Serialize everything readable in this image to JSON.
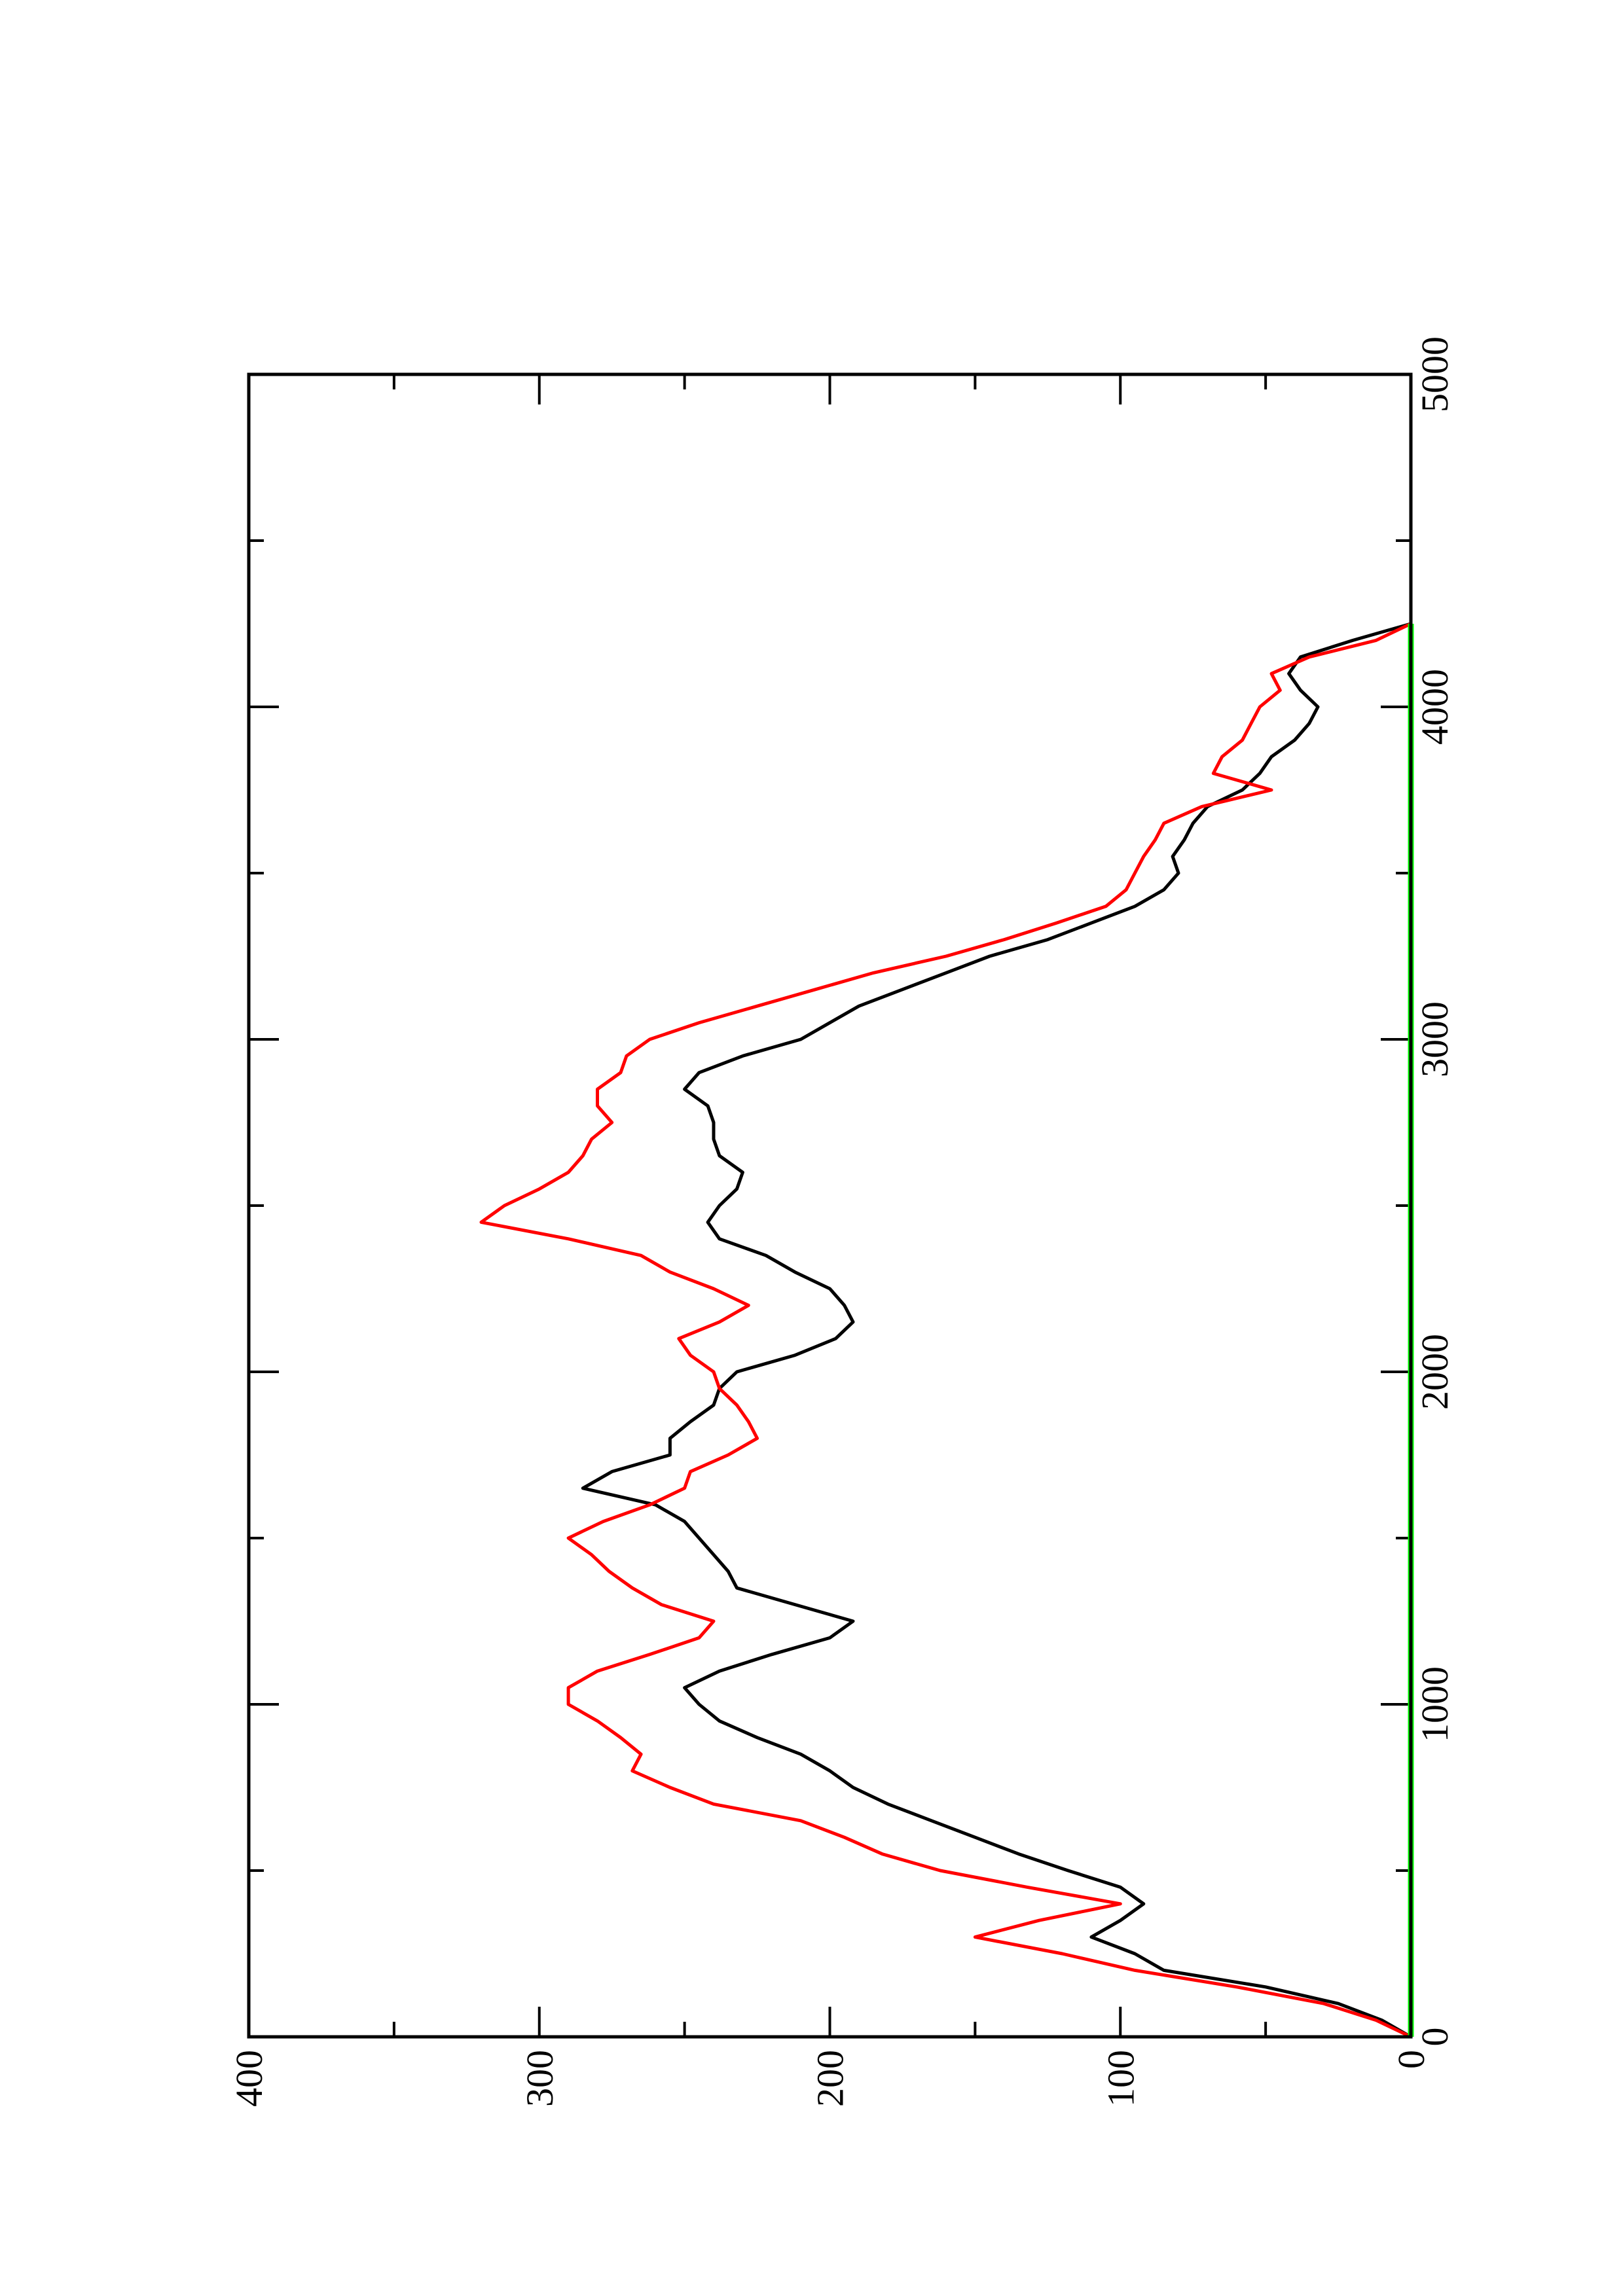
{
  "chart_data": {
    "type": "line",
    "orientation": "rotated-90-ccw",
    "title": "",
    "xlabel": "",
    "ylabel": "",
    "xlim": [
      0,
      5000
    ],
    "ylim": [
      0,
      400
    ],
    "x_ticks": [
      0,
      1000,
      2000,
      3000,
      4000,
      5000
    ],
    "y_ticks": [
      0,
      100,
      200,
      300,
      400
    ],
    "x_tick_labels": [
      "0",
      "1000",
      "2000",
      "3000",
      "4000",
      "5000"
    ],
    "y_tick_labels": [
      "0",
      "100",
      "200",
      "300",
      "400"
    ],
    "grid": false,
    "legend": "none",
    "series": [
      {
        "color": "#000000",
        "points": [
          [
            0,
            0
          ],
          [
            50,
            10
          ],
          [
            100,
            25
          ],
          [
            150,
            50
          ],
          [
            200,
            85
          ],
          [
            250,
            95
          ],
          [
            300,
            110
          ],
          [
            350,
            100
          ],
          [
            400,
            92
          ],
          [
            450,
            100
          ],
          [
            500,
            118
          ],
          [
            550,
            135
          ],
          [
            600,
            150
          ],
          [
            650,
            165
          ],
          [
            700,
            180
          ],
          [
            750,
            192
          ],
          [
            800,
            200
          ],
          [
            850,
            210
          ],
          [
            900,
            225
          ],
          [
            950,
            238
          ],
          [
            1000,
            245
          ],
          [
            1050,
            250
          ],
          [
            1100,
            238
          ],
          [
            1150,
            220
          ],
          [
            1200,
            200
          ],
          [
            1250,
            192
          ],
          [
            1300,
            212
          ],
          [
            1350,
            232
          ],
          [
            1400,
            235
          ],
          [
            1450,
            240
          ],
          [
            1500,
            245
          ],
          [
            1550,
            250
          ],
          [
            1600,
            260
          ],
          [
            1650,
            285
          ],
          [
            1700,
            275
          ],
          [
            1750,
            255
          ],
          [
            1800,
            255
          ],
          [
            1850,
            248
          ],
          [
            1900,
            240
          ],
          [
            1950,
            238
          ],
          [
            2000,
            232
          ],
          [
            2050,
            212
          ],
          [
            2100,
            198
          ],
          [
            2150,
            192
          ],
          [
            2200,
            195
          ],
          [
            2250,
            200
          ],
          [
            2300,
            212
          ],
          [
            2350,
            222
          ],
          [
            2400,
            238
          ],
          [
            2450,
            242
          ],
          [
            2500,
            238
          ],
          [
            2550,
            232
          ],
          [
            2600,
            230
          ],
          [
            2650,
            238
          ],
          [
            2700,
            240
          ],
          [
            2750,
            240
          ],
          [
            2800,
            242
          ],
          [
            2850,
            250
          ],
          [
            2900,
            245
          ],
          [
            2950,
            230
          ],
          [
            3000,
            210
          ],
          [
            3050,
            200
          ],
          [
            3100,
            190
          ],
          [
            3150,
            175
          ],
          [
            3200,
            160
          ],
          [
            3250,
            145
          ],
          [
            3300,
            125
          ],
          [
            3350,
            110
          ],
          [
            3400,
            95
          ],
          [
            3450,
            85
          ],
          [
            3500,
            80
          ],
          [
            3550,
            82
          ],
          [
            3600,
            78
          ],
          [
            3650,
            75
          ],
          [
            3700,
            70
          ],
          [
            3750,
            58
          ],
          [
            3800,
            52
          ],
          [
            3850,
            48
          ],
          [
            3900,
            40
          ],
          [
            3950,
            35
          ],
          [
            4000,
            32
          ],
          [
            4050,
            38
          ],
          [
            4100,
            42
          ],
          [
            4150,
            38
          ],
          [
            4200,
            20
          ],
          [
            4250,
            0
          ]
        ]
      },
      {
        "color": "#ff0000",
        "points": [
          [
            0,
            0
          ],
          [
            50,
            12
          ],
          [
            100,
            30
          ],
          [
            150,
            60
          ],
          [
            200,
            95
          ],
          [
            250,
            120
          ],
          [
            300,
            150
          ],
          [
            350,
            128
          ],
          [
            400,
            100
          ],
          [
            450,
            132
          ],
          [
            500,
            162
          ],
          [
            550,
            182
          ],
          [
            600,
            195
          ],
          [
            650,
            210
          ],
          [
            700,
            240
          ],
          [
            750,
            255
          ],
          [
            800,
            268
          ],
          [
            850,
            265
          ],
          [
            900,
            272
          ],
          [
            950,
            280
          ],
          [
            1000,
            290
          ],
          [
            1050,
            290
          ],
          [
            1100,
            280
          ],
          [
            1150,
            262
          ],
          [
            1200,
            245
          ],
          [
            1250,
            240
          ],
          [
            1300,
            258
          ],
          [
            1350,
            268
          ],
          [
            1400,
            276
          ],
          [
            1450,
            282
          ],
          [
            1500,
            290
          ],
          [
            1550,
            278
          ],
          [
            1600,
            262
          ],
          [
            1650,
            250
          ],
          [
            1700,
            248
          ],
          [
            1750,
            235
          ],
          [
            1800,
            225
          ],
          [
            1850,
            228
          ],
          [
            1900,
            232
          ],
          [
            1950,
            238
          ],
          [
            2000,
            240
          ],
          [
            2050,
            248
          ],
          [
            2100,
            252
          ],
          [
            2150,
            238
          ],
          [
            2200,
            228
          ],
          [
            2250,
            240
          ],
          [
            2300,
            255
          ],
          [
            2350,
            265
          ],
          [
            2400,
            290
          ],
          [
            2450,
            320
          ],
          [
            2500,
            312
          ],
          [
            2550,
            300
          ],
          [
            2600,
            290
          ],
          [
            2650,
            285
          ],
          [
            2700,
            282
          ],
          [
            2750,
            275
          ],
          [
            2800,
            280
          ],
          [
            2850,
            280
          ],
          [
            2900,
            272
          ],
          [
            2950,
            270
          ],
          [
            3000,
            262
          ],
          [
            3050,
            245
          ],
          [
            3100,
            225
          ],
          [
            3150,
            205
          ],
          [
            3200,
            185
          ],
          [
            3250,
            160
          ],
          [
            3300,
            140
          ],
          [
            3350,
            122
          ],
          [
            3400,
            105
          ],
          [
            3450,
            98
          ],
          [
            3500,
            95
          ],
          [
            3550,
            92
          ],
          [
            3600,
            88
          ],
          [
            3650,
            85
          ],
          [
            3700,
            72
          ],
          [
            3750,
            48
          ],
          [
            3800,
            68
          ],
          [
            3850,
            65
          ],
          [
            3900,
            58
          ],
          [
            3950,
            55
          ],
          [
            4000,
            52
          ],
          [
            4050,
            45
          ],
          [
            4100,
            48
          ],
          [
            4150,
            35
          ],
          [
            4200,
            12
          ],
          [
            4250,
            0
          ]
        ]
      },
      {
        "color": "#00ff00",
        "points": [
          [
            0,
            0
          ],
          [
            4250,
            0
          ]
        ]
      }
    ]
  }
}
